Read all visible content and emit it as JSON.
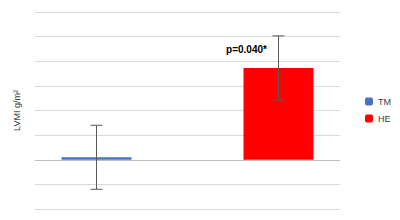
{
  "chart_data": {
    "type": "bar",
    "categories": [
      null
    ],
    "series": [
      {
        "name": "TM",
        "color": "#4472c4",
        "values": [
          0.1
        ],
        "errors": [
          1.3
        ]
      },
      {
        "name": "HE",
        "color": "#ff0000",
        "values": [
          3.73
        ],
        "errors": [
          1.3
        ]
      }
    ],
    "y_label": "LVMI g/m²",
    "ylim": [
      -2,
      6
    ],
    "yticks": [
      -2,
      -1,
      0,
      1,
      2,
      3,
      4,
      5,
      6
    ],
    "grid": true,
    "tick_labels": false,
    "legend": "right",
    "annotations": [
      {
        "text": "p=0.040*",
        "series": "HE"
      }
    ]
  }
}
